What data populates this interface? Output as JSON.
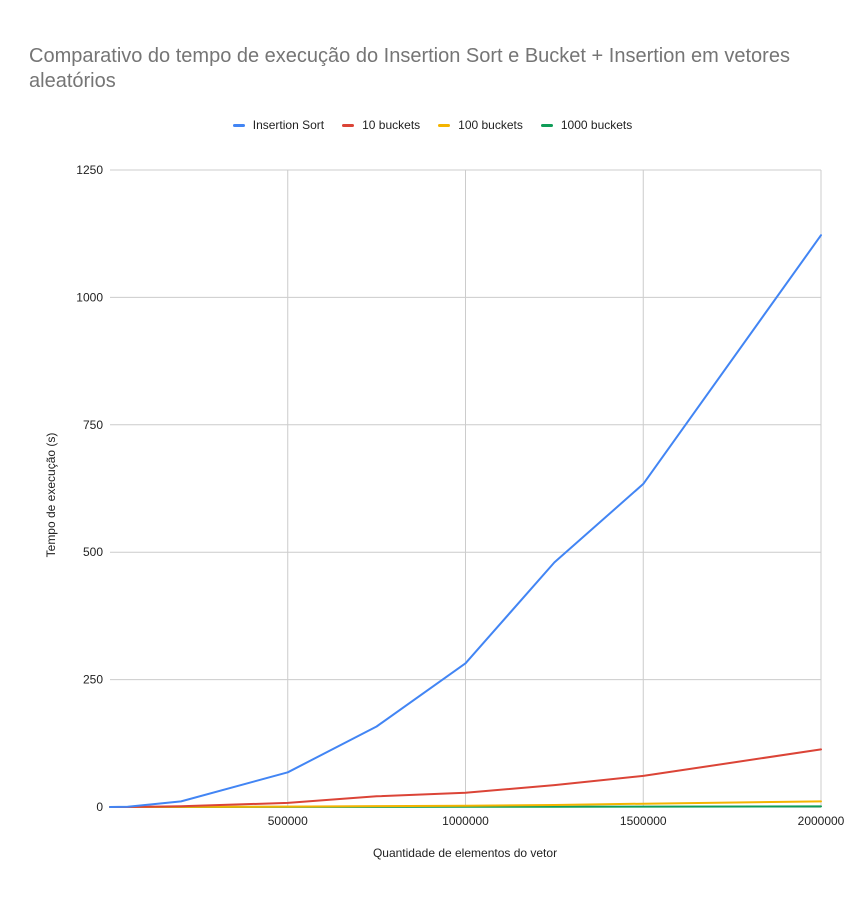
{
  "chart_data": {
    "type": "line",
    "title": "Comparativo do tempo de execução do Insertion Sort e Bucket + Insertion em vetores aleatórios",
    "xlabel": "Quantidade de elementos do vetor",
    "ylabel": "Tempo de execução (s)",
    "xlim": [
      0,
      2000000
    ],
    "ylim": [
      0,
      1250
    ],
    "xticks": [
      "500000",
      "1000000",
      "1500000",
      "2000000"
    ],
    "yticks": [
      "0",
      "250",
      "500",
      "750",
      "1000",
      "1250"
    ],
    "grid": true,
    "legend_position": "top",
    "x": [
      50000,
      200000,
      500000,
      750000,
      1000000,
      1250000,
      1500000,
      2000000
    ],
    "series": [
      {
        "name": "Insertion Sort",
        "color": "#4285F4",
        "values": [
          0.5,
          11,
          68,
          158,
          282,
          480,
          634,
          1122
        ]
      },
      {
        "name": "10 buckets",
        "color": "#DB4437",
        "values": [
          0,
          1.5,
          8,
          21,
          28,
          43,
          61,
          113
        ]
      },
      {
        "name": "100 buckets",
        "color": "#F4B400",
        "values": [
          0,
          0.2,
          0.8,
          1.8,
          2.6,
          4,
          6.5,
          11
        ]
      },
      {
        "name": "1000 buckets",
        "color": "#0F9D58",
        "values": [
          0,
          0,
          0.1,
          0.2,
          0.3,
          0.5,
          0.7,
          1.2
        ]
      }
    ]
  }
}
